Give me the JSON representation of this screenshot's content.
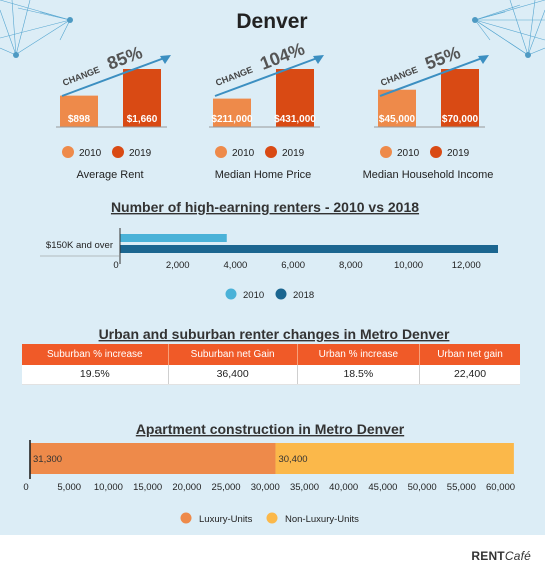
{
  "title": "Denver",
  "colors": {
    "v2010": "#ee8a4a",
    "v2019": "#d94a14",
    "light_blue": "#4ab2d8",
    "dark_blue": "#1b6690",
    "luxury": "#ee8a4a",
    "non_luxury": "#fbb84a",
    "header_orange": "#f05a28",
    "arrow": "#3c8fc1"
  },
  "change_label": "CHANGE",
  "legend_years": [
    "2010",
    "2019"
  ],
  "chart_data": [
    {
      "type": "bar",
      "title": "Average Rent",
      "categories": [
        "2010",
        "2019"
      ],
      "values": [
        898,
        1660
      ],
      "value_labels": [
        "$898",
        "$1,660"
      ],
      "change": "85%"
    },
    {
      "type": "bar",
      "title": "Median Home Price",
      "categories": [
        "2010",
        "2019"
      ],
      "values": [
        211000,
        431000
      ],
      "value_labels": [
        "$211,000",
        "$431,000"
      ],
      "change": "104%"
    },
    {
      "type": "bar",
      "title": "Median Household Income",
      "categories": [
        "2010",
        "2019"
      ],
      "values": [
        45000,
        70000
      ],
      "value_labels": [
        "$45,000",
        "$70,000"
      ],
      "change": "55%"
    },
    {
      "type": "bar",
      "orientation": "horizontal",
      "title": "Number of high-earning renters - 2010 vs 2018",
      "categories": [
        "$150K and over"
      ],
      "series": [
        {
          "name": "2010",
          "values": [
            3700
          ]
        },
        {
          "name": "2018",
          "values": [
            13100
          ]
        }
      ],
      "xlim": [
        0,
        13100
      ],
      "xticks": [
        0,
        2000,
        4000,
        6000,
        8000,
        10000,
        12000
      ],
      "xtick_labels": [
        "0",
        "2,000",
        "4,000",
        "6,000",
        "8,000",
        "10,000",
        "12,000"
      ],
      "legend": "bottom-center"
    },
    {
      "type": "table",
      "title": "Urban and suburban renter changes in Metro Denver",
      "columns": [
        "Suburban % increase",
        "Suburban net Gain",
        "Urban % increase",
        "Urban net gain"
      ],
      "rows": [
        [
          "19.5%",
          "36,400",
          "18.5%",
          "22,400"
        ]
      ]
    },
    {
      "type": "bar",
      "orientation": "horizontal",
      "stacked": true,
      "title": "Apartment construction in Metro Denver",
      "series": [
        {
          "name": "Luxury-Units",
          "values": [
            31300
          ],
          "label": "31,300"
        },
        {
          "name": "Non-Luxury-Units",
          "values": [
            30400
          ],
          "label": "30,400"
        }
      ],
      "xlim": [
        0,
        63500
      ],
      "xticks": [
        0,
        5000,
        10000,
        15000,
        20000,
        25000,
        30000,
        35000,
        40000,
        45000,
        50000,
        55000,
        60000
      ],
      "xtick_labels": [
        "0",
        "5,000",
        "10,000",
        "15,000",
        "20,000",
        "25,000",
        "30,000",
        "35,000",
        "40,000",
        "45,000",
        "50,000",
        "55,000",
        "60,000"
      ],
      "legend": "bottom-center"
    }
  ],
  "brand": {
    "rent": "RENT",
    "cafe": "Café"
  }
}
